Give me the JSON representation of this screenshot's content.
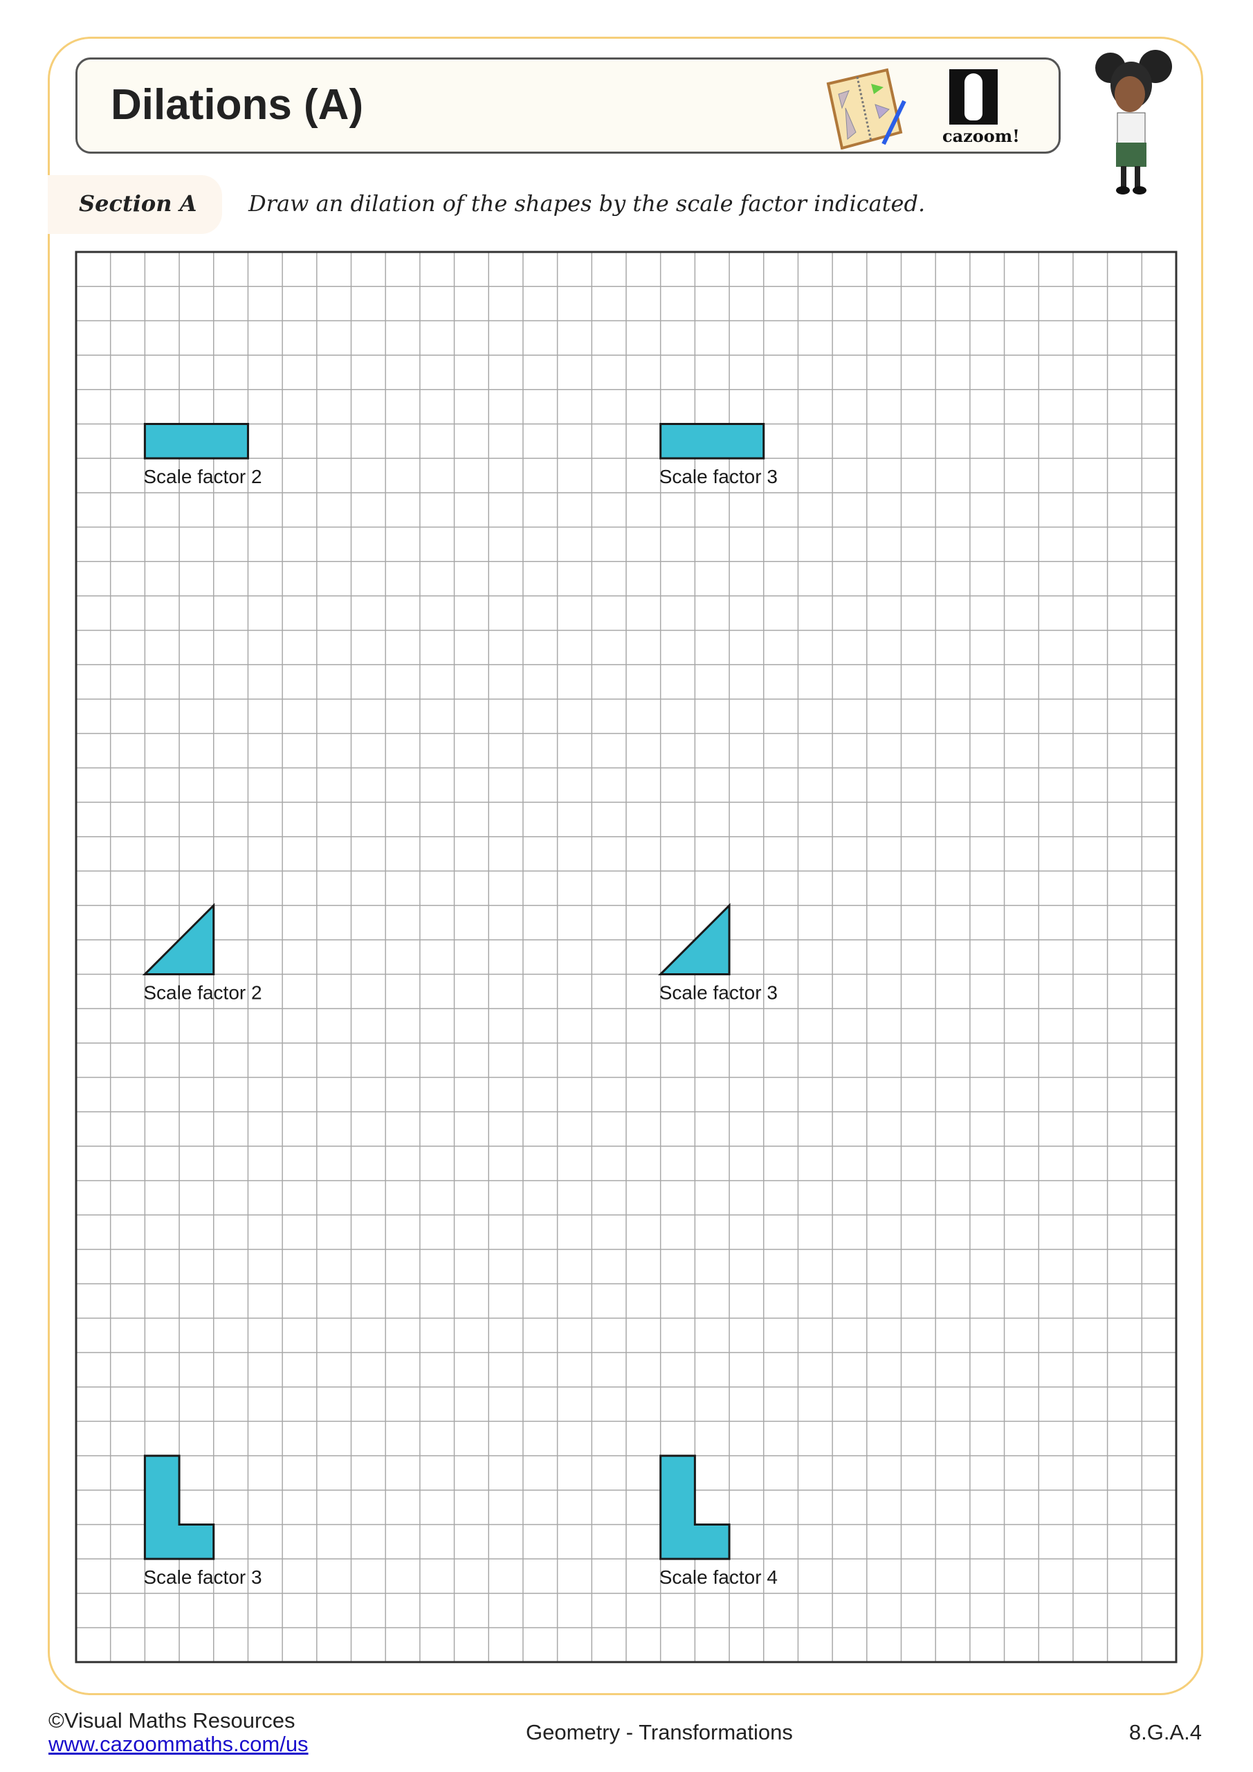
{
  "header": {
    "title": "Dilations (A)",
    "logo_text": "cazoom!"
  },
  "section": {
    "label": "Section A",
    "instruction": "Draw an dilation of the shapes by the scale factor indicated."
  },
  "grid": {
    "columns": 32,
    "rows": 41,
    "shape_color": "#3bbfd4"
  },
  "shapes": [
    {
      "type": "rectangle",
      "label": "Scale factor 2"
    },
    {
      "type": "rectangle",
      "label": "Scale factor 3"
    },
    {
      "type": "right-triangle",
      "label": "Scale factor 2"
    },
    {
      "type": "right-triangle",
      "label": "Scale factor 3"
    },
    {
      "type": "l-shape",
      "label": "Scale factor 3"
    },
    {
      "type": "l-shape",
      "label": "Scale factor 4"
    }
  ],
  "footer": {
    "copyright": "©Visual Maths Resources",
    "link": "www.cazoommaths.com/us",
    "topic": "Geometry - Transformations",
    "standard": "8.G.A.4"
  }
}
